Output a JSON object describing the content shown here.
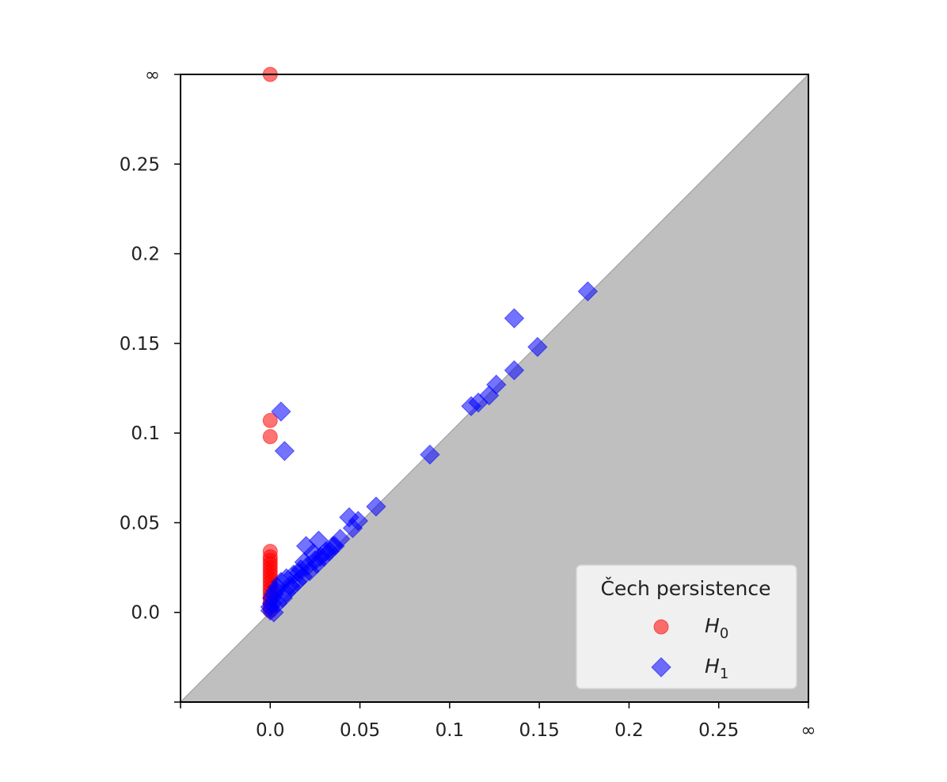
{
  "chart_data": {
    "type": "scatter",
    "title": "",
    "xlabel": "",
    "ylabel": "",
    "xlim": [
      -0.05,
      0.3
    ],
    "ylim": [
      -0.05,
      0.3
    ],
    "infinity_value": 0.3,
    "diagonal_shaded": true,
    "shade_color": "#bfbfbf",
    "grid": false,
    "xticks": [
      {
        "value": 0.0,
        "label": "0.0"
      },
      {
        "value": 0.05,
        "label": "0.05"
      },
      {
        "value": 0.1,
        "label": "0.1"
      },
      {
        "value": 0.15,
        "label": "0.15"
      },
      {
        "value": 0.2,
        "label": "0.2"
      },
      {
        "value": 0.25,
        "label": "0.25"
      },
      {
        "value": 0.3,
        "label": "∞"
      }
    ],
    "yticks": [
      {
        "value": 0.0,
        "label": "0.0"
      },
      {
        "value": 0.05,
        "label": "0.05"
      },
      {
        "value": 0.1,
        "label": "0.1"
      },
      {
        "value": 0.15,
        "label": "0.15"
      },
      {
        "value": 0.2,
        "label": "0.2"
      },
      {
        "value": 0.25,
        "label": "0.25"
      },
      {
        "value": 0.3,
        "label": "∞"
      }
    ],
    "legend": {
      "title": "Čech persistence",
      "placement": "lower-right",
      "entries": [
        {
          "name": "H",
          "subscript": "0",
          "marker": "circle",
          "color": "#ff0000"
        },
        {
          "name": "H",
          "subscript": "1",
          "marker": "diamond",
          "color": "#0000ff"
        }
      ]
    },
    "series": [
      {
        "name": "H0",
        "marker": "circle",
        "color": "#ff0000",
        "opacity": 0.55,
        "points": [
          [
            0.0,
            0.3
          ],
          [
            0.0,
            0.107
          ],
          [
            0.0,
            0.098
          ],
          [
            0.0,
            0.034
          ],
          [
            0.0,
            0.031
          ],
          [
            0.0,
            0.029
          ],
          [
            0.0,
            0.027
          ],
          [
            0.0,
            0.025
          ],
          [
            0.0,
            0.023
          ],
          [
            0.0,
            0.021
          ],
          [
            0.0,
            0.019
          ],
          [
            0.0,
            0.017
          ],
          [
            0.0,
            0.015
          ],
          [
            0.0,
            0.013
          ],
          [
            0.0,
            0.011
          ],
          [
            0.0,
            0.009
          ],
          [
            0.0,
            0.007
          ],
          [
            0.0,
            0.005
          ],
          [
            0.0,
            0.003
          ],
          [
            0.0,
            0.001
          ]
        ]
      },
      {
        "name": "H1",
        "marker": "diamond",
        "color": "#0000ff",
        "opacity": 0.55,
        "points": [
          [
            0.177,
            0.179
          ],
          [
            0.136,
            0.164
          ],
          [
            0.149,
            0.148
          ],
          [
            0.136,
            0.135
          ],
          [
            0.126,
            0.127
          ],
          [
            0.122,
            0.121
          ],
          [
            0.116,
            0.117
          ],
          [
            0.112,
            0.115
          ],
          [
            0.089,
            0.088
          ],
          [
            0.006,
            0.112
          ],
          [
            0.008,
            0.09
          ],
          [
            0.059,
            0.059
          ],
          [
            0.049,
            0.051
          ],
          [
            0.044,
            0.053
          ],
          [
            0.046,
            0.047
          ],
          [
            0.039,
            0.041
          ],
          [
            0.027,
            0.04
          ],
          [
            0.02,
            0.037
          ],
          [
            0.035,
            0.037
          ],
          [
            0.031,
            0.034
          ],
          [
            0.028,
            0.031
          ],
          [
            0.025,
            0.029
          ],
          [
            0.021,
            0.026
          ],
          [
            0.017,
            0.024
          ],
          [
            0.013,
            0.021
          ],
          [
            0.009,
            0.019
          ],
          [
            0.006,
            0.017
          ],
          [
            0.004,
            0.014
          ],
          [
            0.003,
            0.012
          ],
          [
            0.002,
            0.01
          ],
          [
            0.001,
            0.008
          ],
          [
            0.001,
            0.005
          ],
          [
            0.0,
            0.003
          ],
          [
            0.0,
            0.001
          ],
          [
            0.012,
            0.014
          ],
          [
            0.015,
            0.017
          ],
          [
            0.018,
            0.02
          ],
          [
            0.022,
            0.023
          ],
          [
            0.026,
            0.027
          ],
          [
            0.03,
            0.031
          ],
          [
            0.033,
            0.034
          ],
          [
            0.036,
            0.037
          ],
          [
            0.004,
            0.005
          ],
          [
            0.007,
            0.008
          ],
          [
            0.009,
            0.011
          ],
          [
            0.011,
            0.015
          ],
          [
            0.016,
            0.022
          ],
          [
            0.019,
            0.028
          ],
          [
            0.024,
            0.033
          ],
          [
            0.002,
            0.0
          ]
        ]
      }
    ]
  }
}
